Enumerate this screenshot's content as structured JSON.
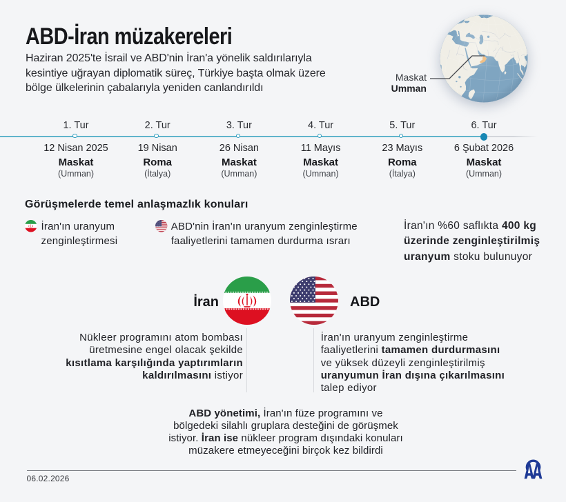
{
  "colors": {
    "background": "#f4f5f7",
    "timeline_teal": "#5fb4cb",
    "node_ring": "#2f9dbe",
    "node_filled": "#1787b4",
    "text_dark": "#17181b",
    "aa_navy": "#1e3a96",
    "oman_highlight": "#efb97a",
    "ocean_blue": "#7fa5c1",
    "land_cream": "#f0eee6"
  },
  "header": {
    "title": "ABD-İran müzakereleri",
    "subtitle": "Haziran 2025'te İsrail ve ABD'nin İran'a yönelik saldırılarıyla\nkesintiye uğrayan diplomatik süreç, Türkiye başta olmak üzere\nbölge ülkelerinin çabalarıyla yeniden canlandırıldı"
  },
  "globe": {
    "city": "Maskat",
    "country": "Umman"
  },
  "timeline": {
    "rounds": [
      {
        "label": "1. Tur",
        "date": "12 Nisan 2025",
        "city": "Maskat",
        "country": "(Umman)"
      },
      {
        "label": "2. Tur",
        "date": "19 Nisan",
        "city": "Roma",
        "country": "(İtalya)"
      },
      {
        "label": "3. Tur",
        "date": "26 Nisan",
        "city": "Maskat",
        "country": "(Umman)"
      },
      {
        "label": "4. Tur",
        "date": "11 Mayıs",
        "city": "Maskat",
        "country": "(Umman)"
      },
      {
        "label": "5. Tur",
        "date": "23 Mayıs",
        "city": "Roma",
        "country": "(İtalya)"
      },
      {
        "label": "6. Tur",
        "date": "6 Şubat 2026",
        "city": "Maskat",
        "country": "(Umman)"
      }
    ]
  },
  "disputes": {
    "heading": "Görüşmelerde temel anlaşmazlık konuları",
    "items": [
      {
        "text": "İran'ın uranyum\nzenginleştirmesi"
      },
      {
        "text": "ABD'nin İran'ın uranyum zenginleştirme\nfaaliyetlerini tamamen durdurma ısrarı"
      }
    ],
    "stat_segments": [
      {
        "t": "İran'ın %60 saflıkta ",
        "b": false
      },
      {
        "t": "400 kg\nüzerinde zenginleştirilmiş\nuranyum",
        "b": true
      },
      {
        "t": " stoku bulunuyor",
        "b": false
      }
    ]
  },
  "standoff": {
    "iran_label": "İran",
    "us_label": "ABD",
    "iran_demand_segments": [
      {
        "t": "Nükleer programını atom bombası\nüretmesine engel olacak şekilde\n",
        "b": false
      },
      {
        "t": "kısıtlama karşılığında yaptırımların\nkaldırılmasını",
        "b": true
      },
      {
        "t": " istiyor",
        "b": false
      }
    ],
    "us_demand_segments": [
      {
        "t": "İran'ın uranyum zenginleştirme\nfaaliyetlerini ",
        "b": false
      },
      {
        "t": "tamamen durdurmasını",
        "b": true
      },
      {
        "t": "\nve yüksek düzeyli zenginleştirilmiş\n",
        "b": false
      },
      {
        "t": "uranyumun İran dışına çıkarılmasını",
        "b": true
      },
      {
        "t": "\ntalep ediyor",
        "b": false
      }
    ]
  },
  "note_segments": [
    {
      "t": "ABD yönetimi,",
      "b": true
    },
    {
      "t": " İran'ın füze programını ve\nbölgedeki silahlı gruplara desteğini de görüşmek\nistiyor. ",
      "b": false
    },
    {
      "t": "İran ise",
      "b": true
    },
    {
      "t": " nükleer program dışındaki konuları\nmüzakere etmeyeceğini birçok kez bildirdi",
      "b": false
    }
  ],
  "footer": {
    "date": "06.02.2026",
    "agency": "AA"
  }
}
